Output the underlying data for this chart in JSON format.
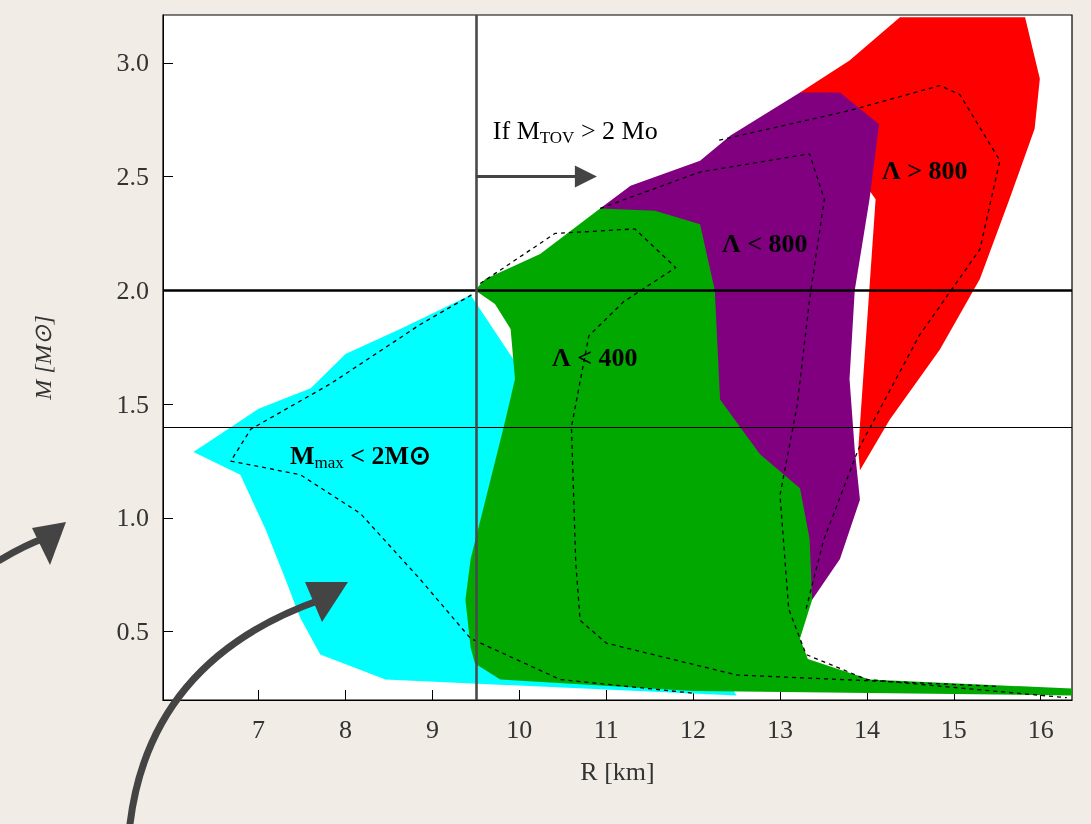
{
  "chart_data": {
    "type": "area",
    "xlabel": "R [km]",
    "ylabel": "M [M⊙]",
    "xlim": [
      5.9,
      16.36
    ],
    "ylim": [
      0.2,
      3.21
    ],
    "xticks": [
      7,
      8,
      9,
      10,
      11,
      12,
      13,
      14,
      15,
      16
    ],
    "yticks": [
      0.5,
      {
        "value": 1,
        "label": "1.0"
      },
      1.5,
      {
        "value": 2,
        "label": "2.0"
      },
      2.5,
      {
        "value": 3,
        "label": "3.0"
      }
    ],
    "grid": false,
    "marker": "none",
    "series": [
      {
        "color": "#ff0000",
        "x": [
          13.23,
          13.8,
          14.38,
          15.82,
          15.99,
          15.93,
          15.64,
          15.3,
          14.84,
          14.26,
          13.92,
          13.9,
          14.1
        ],
        "values": [
          2.87,
          3.01,
          3.2,
          3.2,
          2.93,
          2.71,
          2.4,
          2.05,
          1.74,
          1.43,
          1.21,
          1.3,
          2.4
        ]
      },
      {
        "color": "#800080",
        "x": [
          10.93,
          11.28,
          12.08,
          12.43,
          13.23,
          13.69,
          14.14,
          14.03,
          13.86,
          13.8,
          13.86,
          13.92,
          13.69,
          13.37
        ],
        "values": [
          2.36,
          2.46,
          2.57,
          2.68,
          2.87,
          2.87,
          2.73,
          2.4,
          2.0,
          1.61,
          1.3,
          1.08,
          0.82,
          0.64
        ]
      },
      {
        "color": "#00ffff",
        "x": [
          6.25,
          7.0,
          7.6,
          8.0,
          8.63,
          9.44,
          12.5,
          8.46,
          7.71,
          7.48,
          7.31,
          7.08,
          6.79
        ],
        "values": [
          1.29,
          1.48,
          1.57,
          1.72,
          1.83,
          1.98,
          0.22,
          0.29,
          0.4,
          0.56,
          0.73,
          0.95,
          1.19
        ]
      },
      {
        "color": "#00a800",
        "x": [
          9.49,
          9.61,
          10.24,
          10.93,
          11.56,
          12.08,
          12.25,
          12.31,
          12.77,
          13.23,
          13.34,
          13.37,
          13.23,
          13.32,
          14.03,
          16.36,
          16.36,
          12.0,
          9.78,
          9.49,
          9.44,
          9.38,
          9.44,
          9.67,
          9.84,
          9.95,
          9.9,
          9.72
        ],
        "values": [
          2.0,
          2.05,
          2.16,
          2.36,
          2.35,
          2.29,
          2.0,
          1.52,
          1.28,
          1.13,
          0.91,
          0.64,
          0.47,
          0.38,
          0.29,
          0.25,
          0.22,
          0.24,
          0.29,
          0.36,
          0.43,
          0.64,
          0.82,
          1.17,
          1.43,
          1.61,
          1.83,
          1.94
        ]
      },
      {
        "type": "line",
        "color": "#000000",
        "line_style": "dashed",
        "x": [
          9.45,
          8.86,
          7.83,
          6.91,
          6.68,
          7.48,
          8.17,
          8.86,
          9.44,
          10.47,
          12.0
        ],
        "values": [
          1.98,
          1.85,
          1.59,
          1.39,
          1.25,
          1.19,
          1.02,
          0.73,
          0.47,
          0.29,
          0.23
        ]
      },
      {
        "type": "line",
        "color": "#000000",
        "line_style": "dashed",
        "x": [
          9.55,
          10.41,
          11.33,
          11.8,
          11.2,
          10.8,
          10.6,
          10.65,
          10.7,
          11.0,
          12.5,
          15.5
        ],
        "values": [
          2.03,
          2.25,
          2.27,
          2.1,
          1.95,
          1.8,
          1.4,
          0.8,
          0.55,
          0.45,
          0.31,
          0.26
        ]
      },
      {
        "type": "line",
        "color": "#000000",
        "line_style": "dashed",
        "x": [
          10.93,
          12.08,
          13.34,
          13.51,
          13.34,
          13.2,
          13.0,
          13.1,
          13.3,
          14.0,
          16.3
        ],
        "values": [
          2.36,
          2.52,
          2.6,
          2.4,
          1.96,
          1.5,
          1.1,
          0.6,
          0.4,
          0.29,
          0.21
        ]
      },
      {
        "type": "line",
        "color": "#000000",
        "line_style": "dashed",
        "x": [
          12.3,
          13.8,
          14.84,
          15.07,
          15.53,
          15.3,
          14.6,
          13.9,
          13.5,
          13.3
        ],
        "values": [
          2.66,
          2.79,
          2.9,
          2.86,
          2.57,
          2.18,
          1.8,
          1.3,
          0.9,
          0.6
        ]
      }
    ],
    "ref_lines": [
      {
        "axis": "y",
        "value": 2.0,
        "color": "#000000"
      },
      {
        "axis": "y",
        "value": 1.4,
        "color": "#000000"
      },
      {
        "axis": "x",
        "value": 9.5,
        "color": "#4a4a4a"
      }
    ],
    "annotations": [
      {
        "text": "If M$_{TOV}$ > 2 Mo",
        "x": 9.5,
        "y": 2.5
      },
      "Λ > 800",
      "Λ < 800",
      "Λ < 400",
      "M$_{max}$ < 2M⊙"
    ]
  }
}
